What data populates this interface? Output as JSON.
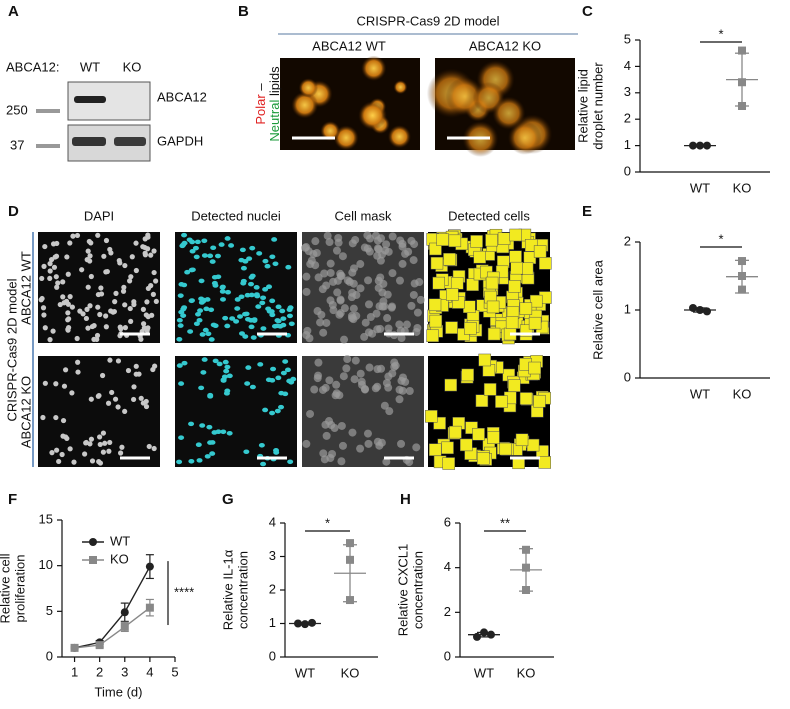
{
  "panel_labels": [
    "A",
    "B",
    "C",
    "D",
    "E",
    "F",
    "G",
    "H"
  ],
  "blot": {
    "genotype_label": "ABCA12:",
    "lanes": [
      "WT",
      "KO"
    ],
    "markers": [
      "250",
      "37"
    ],
    "bands": [
      "ABCA12",
      "GAPDH"
    ]
  },
  "microscopy": {
    "title": "CRISPR-Cas9 2D model",
    "images": [
      "ABCA12 WT",
      "ABCA12 KO"
    ],
    "stain_label": [
      "Polar",
      "–",
      "Neutral",
      "lipids"
    ]
  },
  "segmentation": {
    "model": "CRISPR-Cas9 2D model",
    "columns": [
      "DAPI",
      "Detected nuclei",
      "Cell mask",
      "Detected cells"
    ],
    "rows": [
      "ABCA12 WT",
      "ABCA12 KO"
    ]
  },
  "chart_data": [
    {
      "type": "dotplot",
      "ylabel": [
        "Relative lipid",
        "droplet number"
      ],
      "categories": [
        "WT",
        "KO"
      ],
      "colors": [
        "#222222",
        "#888888"
      ],
      "points": [
        [
          1,
          1,
          1
        ],
        [
          4.6,
          3.4,
          2.5
        ]
      ],
      "mean": [
        1,
        3.5
      ],
      "sd": [
        0.02,
        1.0
      ],
      "ylim": [
        0,
        5
      ],
      "yticks": [
        0,
        1,
        2,
        3,
        4,
        5
      ],
      "annotation": "*"
    },
    {
      "type": "dotplot",
      "ylabel": [
        "Relative cell area"
      ],
      "categories": [
        "WT",
        "KO"
      ],
      "colors": [
        "#222222",
        "#888888"
      ],
      "points": [
        [
          1.03,
          1.0,
          0.98
        ],
        [
          1.72,
          1.5,
          1.3
        ]
      ],
      "mean": [
        1,
        1.49
      ],
      "sd": [
        0.03,
        0.24
      ],
      "ylim": [
        0,
        2
      ],
      "yticks": [
        0,
        1,
        2
      ],
      "annotation": "*"
    },
    {
      "type": "line",
      "ylabel": [
        "Relative cell",
        "proliferation"
      ],
      "xlabel": "Time (d)",
      "x": [
        1,
        2,
        3,
        4
      ],
      "series": [
        {
          "name": "WT",
          "color": "#222222",
          "marker": "circle",
          "values": [
            1,
            1.6,
            4.9,
            9.9
          ],
          "errors": [
            0.1,
            0.2,
            1.0,
            1.3
          ]
        },
        {
          "name": "KO",
          "color": "#888888",
          "marker": "square",
          "values": [
            1,
            1.3,
            3.3,
            5.4
          ],
          "errors": [
            0.1,
            0.2,
            0.5,
            0.9
          ]
        }
      ],
      "xlim": [
        0.5,
        5
      ],
      "xticks": [
        1,
        2,
        3,
        4,
        5
      ],
      "ylim": [
        0,
        15
      ],
      "yticks": [
        0,
        5,
        10,
        15
      ],
      "annotation": "****"
    },
    {
      "type": "dotplot",
      "ylabel": [
        "Relative IL-1α",
        "concentration"
      ],
      "categories": [
        "WT",
        "KO"
      ],
      "colors": [
        "#222222",
        "#888888"
      ],
      "points": [
        [
          1.0,
          0.98,
          1.02
        ],
        [
          3.4,
          2.9,
          1.7
        ]
      ],
      "mean": [
        1,
        2.5
      ],
      "sd": [
        0.03,
        0.85
      ],
      "ylim": [
        0,
        4
      ],
      "yticks": [
        0,
        1,
        2,
        3,
        4
      ],
      "annotation": "*"
    },
    {
      "type": "dotplot",
      "ylabel": [
        "Relative CXCL1",
        "concentration"
      ],
      "categories": [
        "WT",
        "KO"
      ],
      "colors": [
        "#222222",
        "#888888"
      ],
      "points": [
        [
          0.9,
          1.1,
          1.0
        ],
        [
          4.8,
          4.0,
          3.0
        ]
      ],
      "mean": [
        1,
        3.9
      ],
      "sd": [
        0.1,
        0.95
      ],
      "ylim": [
        0,
        6
      ],
      "yticks": [
        0,
        2,
        4,
        6
      ],
      "annotation": "**"
    }
  ]
}
